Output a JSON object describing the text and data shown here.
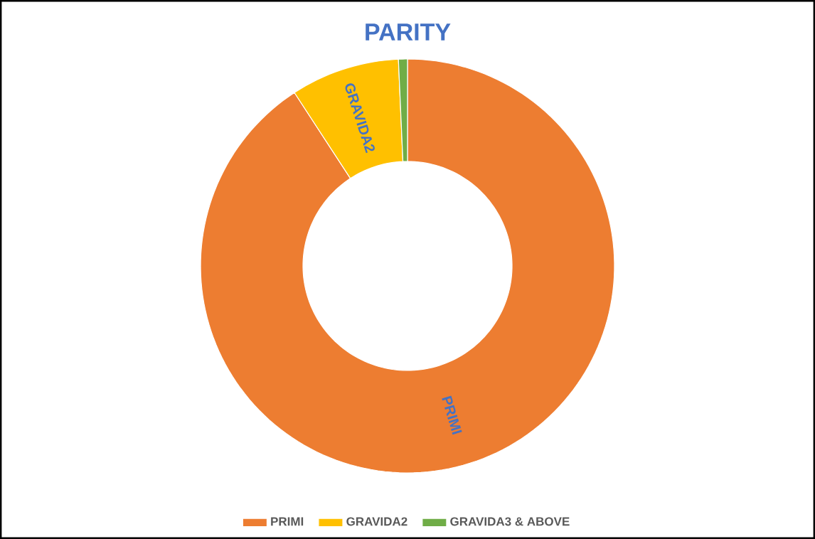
{
  "chart_data": {
    "type": "donut",
    "title": "PARITY",
    "categories": [
      "PRIMI",
      "GRAVIDA2",
      "GRAVIDA3 & ABOVE"
    ],
    "values": [
      90.8,
      8.5,
      0.7
    ],
    "colors": [
      "#ed7d31",
      "#ffc000",
      "#70ad47"
    ],
    "legend": "bottom"
  }
}
